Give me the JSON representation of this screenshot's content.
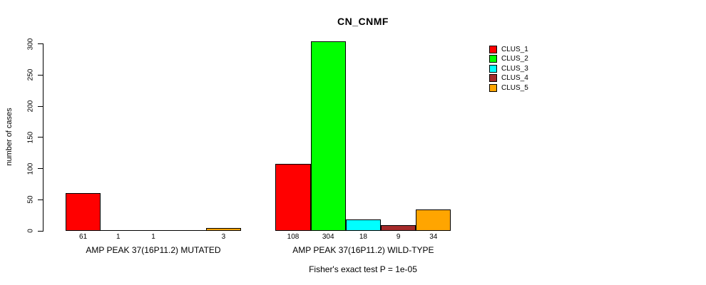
{
  "page": {
    "background": "#ffffff",
    "text_color": "#000000"
  },
  "chart_data": {
    "type": "bar",
    "title": "CN_CNMF",
    "ylabel": "number of cases",
    "xlabel": "",
    "ylim": [
      0,
      300
    ],
    "yticks": [
      0,
      50,
      100,
      150,
      200,
      250,
      300
    ],
    "grid": false,
    "categories": [
      "AMP PEAK 37(16P11.2) MUTATED",
      "AMP PEAK 37(16P11.2) WILD-TYPE"
    ],
    "series": [
      {
        "name": "CLUS_1",
        "color": "#FF0000",
        "values": [
          61,
          108
        ]
      },
      {
        "name": "CLUS_2",
        "color": "#00FF00",
        "values": [
          1,
          304
        ]
      },
      {
        "name": "CLUS_3",
        "color": "#00FFFF",
        "values": [
          1,
          18
        ]
      },
      {
        "name": "CLUS_4",
        "color": "#A52A2A",
        "values": [
          0,
          9
        ]
      },
      {
        "name": "CLUS_5",
        "color": "#FFA500",
        "values": [
          3,
          34
        ]
      }
    ],
    "bar_labels": [
      [
        "61",
        "1",
        "1",
        "",
        "3"
      ],
      [
        "108",
        "304",
        "18",
        "9",
        "34"
      ]
    ],
    "legend": {
      "position": "right",
      "entries": [
        "CLUS_1",
        "CLUS_2",
        "CLUS_3",
        "CLUS_4",
        "CLUS_5"
      ]
    },
    "annotation": "Fisher's exact test P = 1e-05"
  }
}
